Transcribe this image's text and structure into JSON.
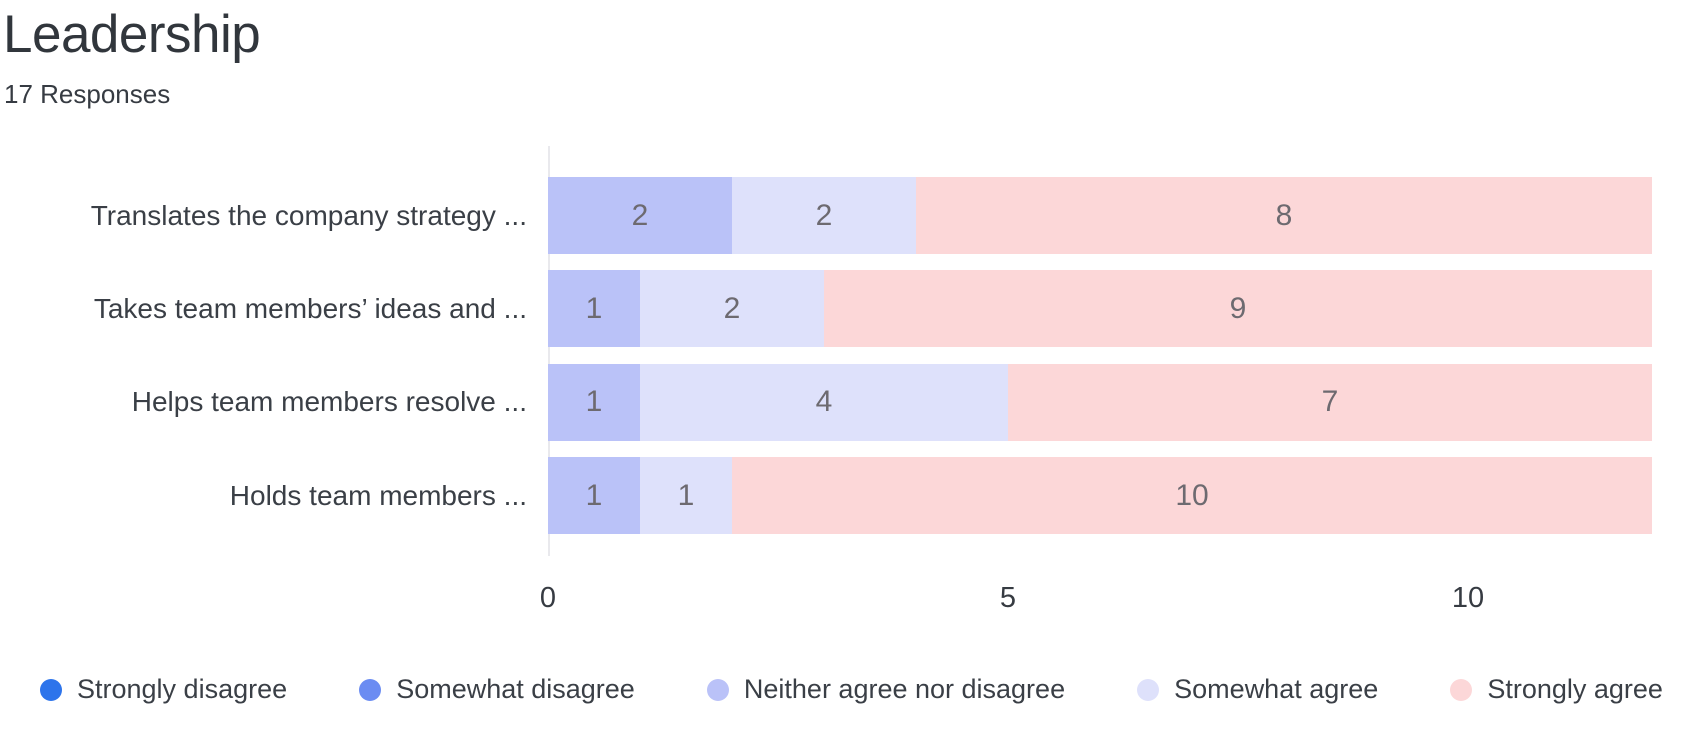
{
  "header": {
    "title": "Leadership",
    "subtitle": "17 Responses"
  },
  "chart_data": {
    "type": "bar",
    "orientation": "horizontal",
    "stacked": true,
    "title": "Leadership",
    "subtitle": "17 Responses",
    "categories": [
      "Translates the company strategy ...",
      "Takes team members’ ideas and ...",
      "Helps team members resolve ...",
      "Holds team members ..."
    ],
    "series": [
      {
        "name": "Strongly disagree",
        "color": "#2d74eb",
        "values": [
          0,
          0,
          0,
          0
        ]
      },
      {
        "name": "Somewhat disagree",
        "color": "#6b8cf2",
        "values": [
          0,
          0,
          0,
          0
        ]
      },
      {
        "name": "Neither agree nor disagree",
        "color": "#bac2f8",
        "values": [
          2,
          1,
          1,
          1
        ]
      },
      {
        "name": "Somewhat agree",
        "color": "#dee1fb",
        "values": [
          2,
          2,
          4,
          1
        ]
      },
      {
        "name": "Strongly agree",
        "color": "#fcd7d8",
        "values": [
          8,
          9,
          7,
          10
        ]
      }
    ],
    "xlim": [
      0,
      12
    ],
    "x_ticks": [
      0,
      5,
      10
    ],
    "grid": false,
    "legend_position": "bottom",
    "value_labels_shown": true
  },
  "colors": {
    "title_text": "#31363c",
    "label_text": "#3a3f46",
    "value_label_text": "#6d6a70",
    "axis_line": "#e9e9ed",
    "background": "#ffffff"
  }
}
